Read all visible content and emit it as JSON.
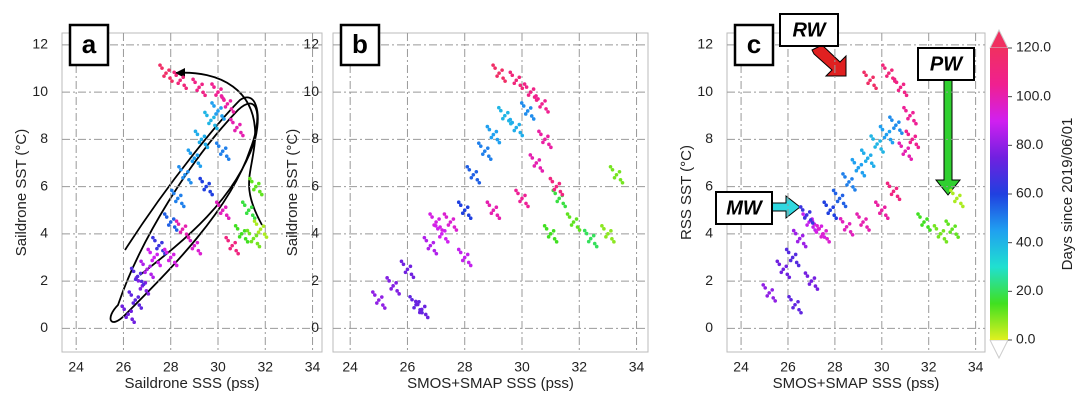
{
  "chart_data": [
    {
      "type": "scatter",
      "label": "a",
      "xlabel": "Saildrone SSS (pss)",
      "ylabel": "Saildrone SST (°C)",
      "xlim": [
        23.4,
        34.4
      ],
      "ylim": [
        -1,
        12.5
      ],
      "xticks": [
        24,
        26,
        28,
        30,
        32,
        34
      ],
      "yticks": [
        0,
        2,
        4,
        6,
        8,
        10,
        12
      ],
      "grid": true,
      "x": [
        26.2,
        26.5,
        26.8,
        27.0,
        27.3,
        26.6,
        27.5,
        28.0,
        28.3,
        28.6,
        29.0,
        29.3,
        29.7,
        30.0,
        29.5,
        30.2,
        31.0,
        31.3,
        31.6,
        31.5,
        31.8,
        27.8,
        28.4,
        29.2,
        30.0,
        30.4,
        30.8,
        29.0,
        28.0,
        28.5,
        30.2,
        30.6
      ],
      "y": [
        0.6,
        1.2,
        1.8,
        2.5,
        3.0,
        2.2,
        3.5,
        4.5,
        5.5,
        6.5,
        7.2,
        8.0,
        8.8,
        9.2,
        6.0,
        7.5,
        4.0,
        5.0,
        6.0,
        3.8,
        4.2,
        10.8,
        10.5,
        10.2,
        10.0,
        9.5,
        8.5,
        3.5,
        3.0,
        4.2,
        5.0,
        3.5
      ],
      "days": [
        75,
        72,
        78,
        85,
        90,
        70,
        65,
        55,
        50,
        48,
        45,
        42,
        40,
        45,
        60,
        50,
        15,
        18,
        12,
        10,
        5,
        118,
        112,
        108,
        105,
        102,
        100,
        95,
        92,
        100,
        98,
        110
      ]
    },
    {
      "type": "scatter",
      "label": "b",
      "xlabel": "SMOS+SMAP SSS (pss)",
      "ylabel": "Saildrone SST (°C)",
      "xlim": [
        23.4,
        34.4
      ],
      "ylim": [
        -1,
        12.5
      ],
      "xticks": [
        24,
        26,
        28,
        30,
        32,
        34
      ],
      "yticks": [
        0,
        2,
        4,
        6,
        8,
        10,
        12
      ],
      "grid": true,
      "x": [
        25.0,
        25.5,
        26.0,
        26.3,
        26.8,
        27.2,
        27.5,
        28.0,
        28.3,
        28.7,
        29.0,
        29.4,
        29.8,
        30.2,
        30.5,
        30.8,
        31.0,
        31.3,
        31.8,
        32.4,
        33.0,
        33.3,
        29.2,
        29.8,
        30.3,
        30.7,
        28.0,
        27.0,
        29.0,
        30.0,
        31.2,
        26.5
      ],
      "y": [
        1.2,
        1.8,
        2.5,
        1.0,
        3.5,
        4.0,
        4.5,
        5.0,
        6.5,
        7.5,
        8.2,
        9.0,
        8.5,
        9.2,
        7.0,
        8.0,
        4.0,
        5.5,
        4.5,
        3.8,
        4.0,
        6.5,
        10.8,
        10.5,
        10.0,
        9.5,
        3.0,
        4.5,
        5.0,
        5.5,
        6.0,
        0.8
      ],
      "days": [
        80,
        78,
        75,
        72,
        85,
        90,
        95,
        60,
        55,
        50,
        45,
        40,
        42,
        48,
        100,
        102,
        15,
        18,
        12,
        20,
        8,
        10,
        118,
        112,
        108,
        105,
        88,
        92,
        100,
        104,
        110,
        74
      ]
    },
    {
      "type": "scatter",
      "label": "c",
      "xlabel": "SMOS+SMAP SSS (pss)",
      "ylabel": "RSS SST (°C)",
      "xlim": [
        23.4,
        34.4
      ],
      "ylim": [
        -1,
        12.5
      ],
      "xticks": [
        24,
        26,
        28,
        30,
        32,
        34
      ],
      "yticks": [
        0,
        2,
        4,
        6,
        8,
        10,
        12
      ],
      "grid": true,
      "annotations": [
        "RW",
        "PW",
        "MW"
      ],
      "x": [
        25.2,
        25.8,
        26.2,
        26.5,
        26.9,
        27.3,
        27.8,
        28.2,
        28.6,
        29.0,
        29.4,
        29.8,
        30.2,
        30.6,
        31.0,
        31.3,
        29.5,
        30.3,
        30.8,
        31.2,
        31.8,
        32.5,
        33.0,
        33.2,
        26.8,
        27.5,
        28.5,
        29.2,
        30.0,
        30.5,
        26.3,
        27.0
      ],
      "y": [
        1.5,
        2.5,
        3.0,
        3.8,
        4.5,
        4.2,
        5.0,
        5.5,
        6.2,
        6.8,
        7.2,
        7.8,
        8.2,
        8.6,
        7.5,
        8.0,
        10.5,
        10.8,
        10.2,
        9.0,
        4.5,
        4.0,
        4.2,
        5.5,
        4.8,
        4.0,
        4.3,
        4.5,
        5.0,
        5.8,
        1.0,
        2.0
      ],
      "days": [
        80,
        75,
        70,
        82,
        88,
        92,
        60,
        55,
        50,
        45,
        42,
        40,
        45,
        48,
        100,
        105,
        118,
        112,
        108,
        104,
        15,
        10,
        12,
        5,
        65,
        95,
        98,
        100,
        102,
        110,
        72,
        76
      ]
    }
  ],
  "colorbar": {
    "label": "Days since 2019/06/01",
    "clim": [
      0,
      120
    ],
    "ticks": [
      {
        "value": 0,
        "label": "0.0"
      },
      {
        "value": 20,
        "label": "20.0"
      },
      {
        "value": 40,
        "label": "40.0"
      },
      {
        "value": 60,
        "label": "60.0"
      },
      {
        "value": 80,
        "label": "80.0"
      },
      {
        "value": 100,
        "label": "100.0"
      },
      {
        "value": 120,
        "label": "120.0"
      }
    ],
    "colors": [
      "#e0f020",
      "#40e020",
      "#20e0d0",
      "#20a0f0",
      "#2040e0",
      "#7020e0",
      "#d020f0",
      "#f02090",
      "#f03060"
    ]
  }
}
